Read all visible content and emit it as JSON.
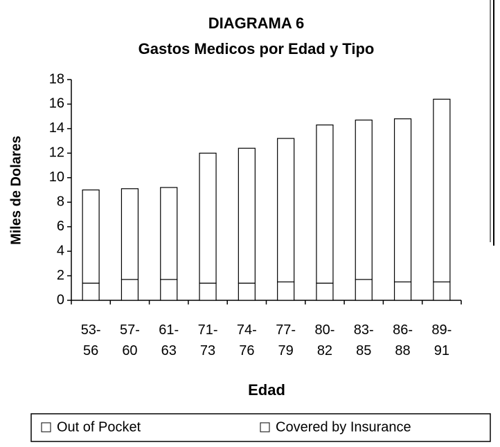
{
  "chart_data": {
    "type": "stacked-bar",
    "title": "DIAGRAMA 6",
    "subtitle": "Gastos Medicos por Edad y Tipo",
    "y_label": "Miles de Dolares",
    "x_label": "Edad",
    "categories": [
      "53-56",
      "57-60",
      "61-63",
      "71-73",
      "74-76",
      "77-79",
      "80-82",
      "83-85",
      "86-88",
      "89-91"
    ],
    "series": [
      {
        "name": "Out of Pocket",
        "color": "#ffffff",
        "values": [
          1.4,
          1.7,
          1.7,
          1.4,
          1.4,
          1.5,
          1.4,
          1.7,
          1.5,
          1.5
        ]
      },
      {
        "name": "Covered by Insurance",
        "color": "#ffffff",
        "values": [
          7.6,
          7.4,
          7.5,
          10.6,
          11.0,
          11.7,
          12.9,
          13.0,
          13.3,
          14.9
        ]
      }
    ],
    "ylim": [
      0,
      18
    ],
    "yticks": [
      0,
      2,
      4,
      6,
      8,
      10,
      12,
      14,
      16,
      18
    ],
    "legend": "bottom"
  }
}
